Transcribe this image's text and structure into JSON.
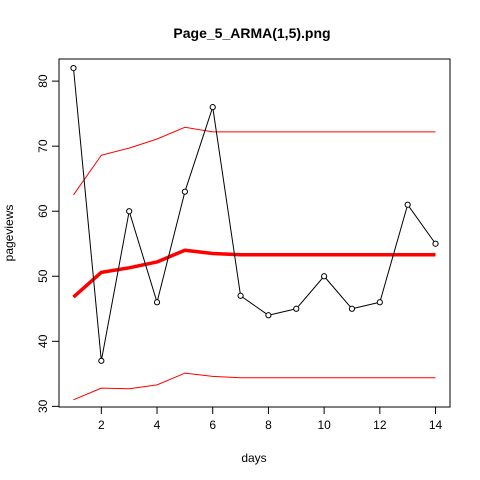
{
  "chart_data": {
    "type": "line",
    "title": "Page_5_ARMA(1,5).png",
    "xlabel": "days",
    "ylabel": "pageviews",
    "xlim": [
      0.48,
      14.52
    ],
    "ylim": [
      29.9,
      83.4
    ],
    "x_ticks": [
      2,
      4,
      6,
      8,
      10,
      12,
      14
    ],
    "y_ticks": [
      30,
      40,
      50,
      60,
      70,
      80
    ],
    "grid": false,
    "legend": "none",
    "x": [
      1,
      2,
      3,
      4,
      5,
      6,
      7,
      8,
      9,
      10,
      11,
      12,
      13,
      14
    ],
    "series": [
      {
        "style": "points-lines",
        "color": "#000000",
        "values": [
          82,
          37,
          60,
          46,
          63,
          76,
          47,
          44,
          45,
          50,
          45,
          46,
          61,
          55
        ]
      },
      {
        "style": "line-thick",
        "color": "#ff0000",
        "values": [
          46.8,
          50.6,
          51.3,
          52.2,
          54.0,
          53.5,
          53.3,
          53.3,
          53.3,
          53.3,
          53.3,
          53.3,
          53.3,
          53.3
        ]
      },
      {
        "style": "line",
        "color": "#ff0000",
        "values": [
          62.5,
          68.6,
          69.7,
          71.1,
          72.9,
          72.2,
          72.2,
          72.2,
          72.2,
          72.2,
          72.2,
          72.2,
          72.2,
          72.2
        ]
      },
      {
        "style": "line",
        "color": "#ff0000",
        "values": [
          31.0,
          32.8,
          32.7,
          33.3,
          35.1,
          34.6,
          34.4,
          34.4,
          34.4,
          34.4,
          34.4,
          34.4,
          34.4,
          34.4
        ]
      }
    ]
  }
}
